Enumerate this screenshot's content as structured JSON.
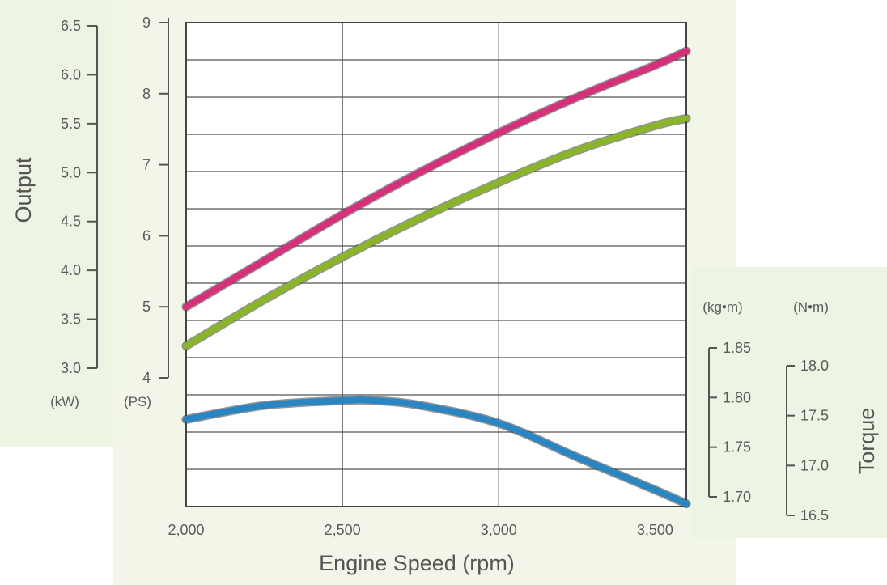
{
  "chart_data": {
    "type": "line",
    "xlabel": "Engine Speed (rpm)",
    "x_ticks": [
      "2,000",
      "2,500",
      "3,000",
      "3,500"
    ],
    "xlim": [
      2000,
      3600
    ],
    "output_axis": {
      "title": "Output",
      "kw_unit": "(kW)",
      "ps_unit": "(PS)",
      "kw_ticks": [
        "6.5",
        "6.0",
        "5.5",
        "5.0",
        "4.5",
        "4.0",
        "3.5",
        "3.0"
      ],
      "ps_ticks": [
        "9",
        "8",
        "7",
        "6",
        "5",
        "4"
      ],
      "ps_range": [
        4,
        9
      ],
      "kw_range": [
        3.0,
        6.5
      ]
    },
    "torque_axis": {
      "title": "Torque",
      "kgm_unit": "(kg•m)",
      "nm_unit": "(N•m)",
      "kgm_ticks": [
        "1.85",
        "1.80",
        "1.75",
        "1.70"
      ],
      "nm_ticks": [
        "18.0",
        "17.5",
        "17.0",
        "16.5"
      ],
      "kgm_range": [
        1.7,
        1.85
      ]
    },
    "series": [
      {
        "axis": "output_ps",
        "color": "#d6307a",
        "x": [
          2000,
          2250,
          2500,
          2750,
          3000,
          3250,
          3500,
          3600
        ],
        "values": [
          5.0,
          5.65,
          6.3,
          6.9,
          7.45,
          7.95,
          8.4,
          8.6
        ]
      },
      {
        "axis": "output_ps",
        "color": "#8ab42a",
        "x": [
          2000,
          2250,
          2500,
          2750,
          3000,
          3250,
          3500,
          3600
        ],
        "values": [
          4.45,
          5.1,
          5.7,
          6.25,
          6.75,
          7.2,
          7.55,
          7.65
        ]
      },
      {
        "axis": "torque_kgm",
        "color": "#2a86c2",
        "x": [
          2000,
          2250,
          2500,
          2600,
          2750,
          3000,
          3250,
          3500,
          3600
        ],
        "values": [
          1.778,
          1.792,
          1.797,
          1.797,
          1.792,
          1.774,
          1.74,
          1.707,
          1.693
        ]
      }
    ]
  }
}
